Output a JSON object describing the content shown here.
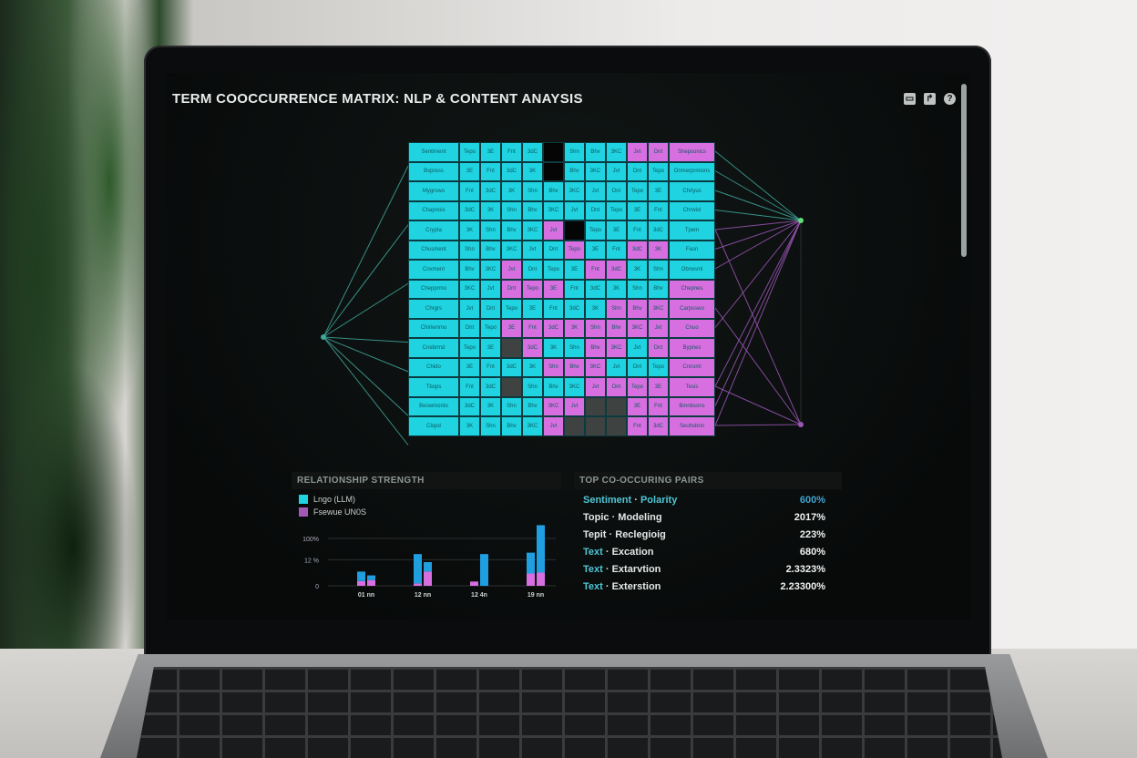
{
  "window": {
    "title": "TERM COOCCURRENCE MATRIX: NLP & CONTENT ANAYSIS",
    "icons": [
      "monitor-icon",
      "share-icon",
      "help-icon"
    ]
  },
  "colors": {
    "cyan": "#1fd3e0",
    "magenta": "#d86fe0",
    "black": "#050505",
    "gray": "#3e4241",
    "line_teal": "#3fa79a",
    "line_purple": "#9a55b5"
  },
  "matrix": {
    "left_labels": [
      "Sentiment",
      "Bxpress",
      "Mygrowo",
      "Chapnois",
      "Crypta",
      "Chusment",
      "Cnxment",
      "Chepprmo",
      "Chrgrs",
      "Chiriwnmo",
      "Cnebrmd",
      "Chido",
      "Tbops",
      "Beowmonto",
      "Clopd"
    ],
    "right_labels": [
      "Shepsonics",
      "Onmerprmions",
      "Chrlyus",
      "Chrwisl",
      "Tpem",
      "Fasn",
      "Obrwsml",
      "Chepnes",
      "Carpsswo",
      "Cnuo",
      "Bypnes",
      "Cnnsml",
      "Tesis",
      "Bmnbsons",
      "Seuhsbnn"
    ],
    "cells": [
      "cccckcccmm|m",
      "cccckccccc|c",
      "cccccccccc|c",
      "cccccccccc|c",
      "ccccmkcccc|c",
      "cccccmccmm|c",
      "ccmcccmmcc|c",
      "ccmmmccccc|m",
      "cccccccmmm|m",
      "ccmmmmmmmm|m",
      "cckmccmmcm|m",
      "ccccmmmccc|m",
      "cckcccmmmm|m",
      "ccccmmkkmm|m",
      "ccccmkkkmm|m"
    ],
    "cell_text": [
      "Tepo",
      "3E",
      "Fnt",
      "3dC",
      "3K",
      "Shn",
      "Bhv",
      "3KC",
      "Jvt",
      "Dnt"
    ]
  },
  "relationship_panel": {
    "heading": "RELATIONSHIP STRENGTH",
    "legend": [
      {
        "label": "Lngo (LLM)",
        "color": "#1fa8e0"
      },
      {
        "label": "Fsewue UN0S",
        "color": "#d86fe0"
      }
    ]
  },
  "chart_data": {
    "type": "bar",
    "stacked": true,
    "categories": [
      "01 nn",
      "12 nn",
      "12 4n",
      "19 nn"
    ],
    "y_tick_labels": [
      "0",
      "12 %",
      "100%"
    ],
    "ylim": [
      0,
      130
    ],
    "grid": true,
    "legend_placement": "top-left",
    "series": [
      {
        "name": "Lngo (LLM)",
        "values_per_category": [
          [
            20,
            10
          ],
          [
            62,
            20
          ],
          [
            0,
            67
          ],
          [
            44,
            100
          ]
        ]
      },
      {
        "name": "Fsewue UN0S",
        "values_per_category": [
          [
            10,
            12
          ],
          [
            5,
            30
          ],
          [
            9,
            0
          ],
          [
            26,
            28
          ]
        ]
      }
    ]
  },
  "pairs_panel": {
    "heading": "TOP CO-OCCURING PAIRS",
    "rows": [
      {
        "term_a": "Sentiment",
        "term_b": "Polarity",
        "value": "600%",
        "highlight": true
      },
      {
        "term_a": "Topic",
        "term_b": "Modeling",
        "value": "2017%",
        "highlight": false
      },
      {
        "term_a": "Tepit",
        "term_b": "Reclegioig",
        "value": "223%",
        "highlight": false
      },
      {
        "term_a": "Text",
        "term_b": "Excation",
        "value": "680%",
        "highlight": "term"
      },
      {
        "term_a": "Text",
        "term_b": "Extarvtion",
        "value": "2.3323%",
        "highlight": "term"
      },
      {
        "term_a": "Text",
        "term_b": "Exterstion",
        "value": "2.23300%",
        "highlight": "term"
      }
    ]
  }
}
